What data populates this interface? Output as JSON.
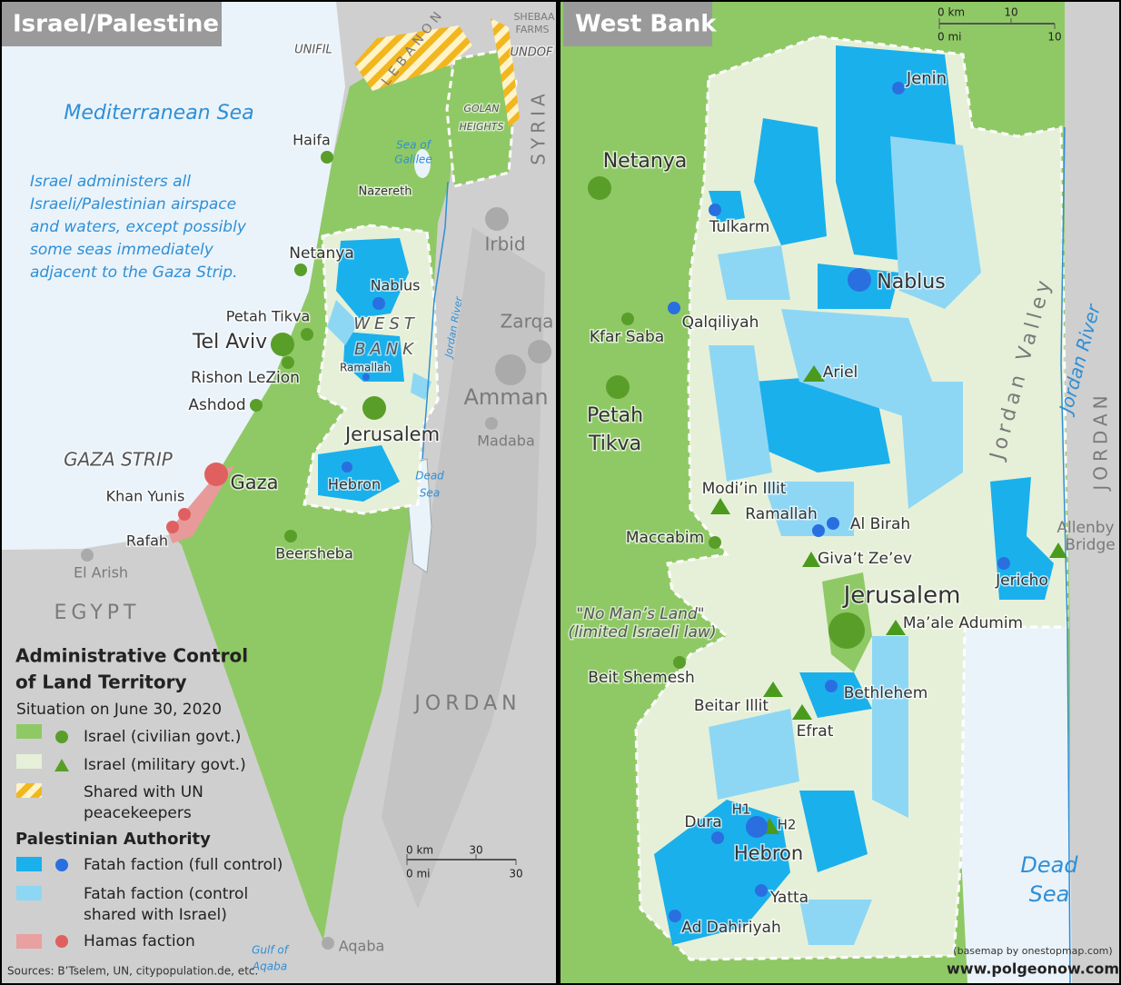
{
  "left": {
    "title": "Israel/Palestine",
    "labels": [
      "LEBANON",
      "UNIFIL",
      "SHEBAA",
      "FARMS",
      "UNDOF",
      "SYRIA",
      "GOLAN",
      "HEIGHTS",
      "Mediterranean Sea",
      "Haifa",
      "Sea of",
      "Galilee",
      "Nazereth",
      "Irbid",
      "Netanya",
      "Nablus",
      "Petah Tikva",
      "WEST",
      "BANK",
      "Tel Aviv",
      "Jordan River",
      "Zarqa",
      "Rishon LeZion",
      "Ramallah",
      "Ashdod",
      "Amman",
      "Jerusalem",
      "Madaba",
      "GAZA STRIP",
      "Gaza",
      "Dead",
      "Sea",
      "Hebron",
      "Khan Yunis",
      "Rafah",
      "Beersheba",
      "El Arish",
      "EGYPT",
      "JORDAN",
      "Gulf of",
      "Aqaba",
      "Aqaba"
    ],
    "note": [
      "Israel administers all",
      "Israeli/Palestinian airspace",
      "and waters, except possibly",
      "some seas immediately",
      "adjacent to the Gaza Strip."
    ],
    "legend": {
      "title": [
        "Administrative Control",
        "of Land Territory"
      ],
      "subtitle": "Situation on June 30, 2020",
      "israel_items": [
        [
          "Israel (civilian govt.)"
        ],
        [
          "Israel (military govt.)"
        ],
        [
          "Shared with UN",
          "peacekeepers"
        ]
      ],
      "pa_heading": "Palestinian Authority",
      "pa_items": [
        [
          "Fatah faction (full control)"
        ],
        [
          "Fatah faction (control",
          "shared with Israel)"
        ],
        [
          "Hamas faction"
        ]
      ]
    },
    "scale": [
      "0 km",
      "30",
      "0 mi",
      "30"
    ],
    "sources": "Sources: B’Tselem, UN, citypopulation.de, etc."
  },
  "right": {
    "title": "West Bank",
    "labels": [
      "Jenin",
      "Netanya",
      "Tulkarm",
      "Nablus",
      "Qalqiliyah",
      "Kfar Saba",
      "Jordan Valley",
      "Jordan River",
      "Ariel",
      "Petah",
      "Tikva",
      "JORDAN",
      "Modi’in Illit",
      "Ramallah",
      "Al Birah",
      "Maccabim",
      "Giva’t Ze’ev",
      "Allenby",
      "Bridge",
      "Jericho",
      "Jerusalem",
      "\"No Man’s Land\"",
      "(limited Israeli law)",
      "Ma’ale Adumim",
      "Beit Shemesh",
      "Beitar Illit",
      "Bethlehem",
      "Efrat",
      "Dura",
      "H1",
      "H2",
      "Hebron",
      "Yatta",
      "Ad Dahiriyah",
      "Dead",
      "Sea"
    ],
    "scale": [
      "0 km",
      "10",
      "0 mi",
      "10"
    ],
    "credit": "(basemap by onestopmap.com)",
    "website": "www.polgeonow.com"
  }
}
